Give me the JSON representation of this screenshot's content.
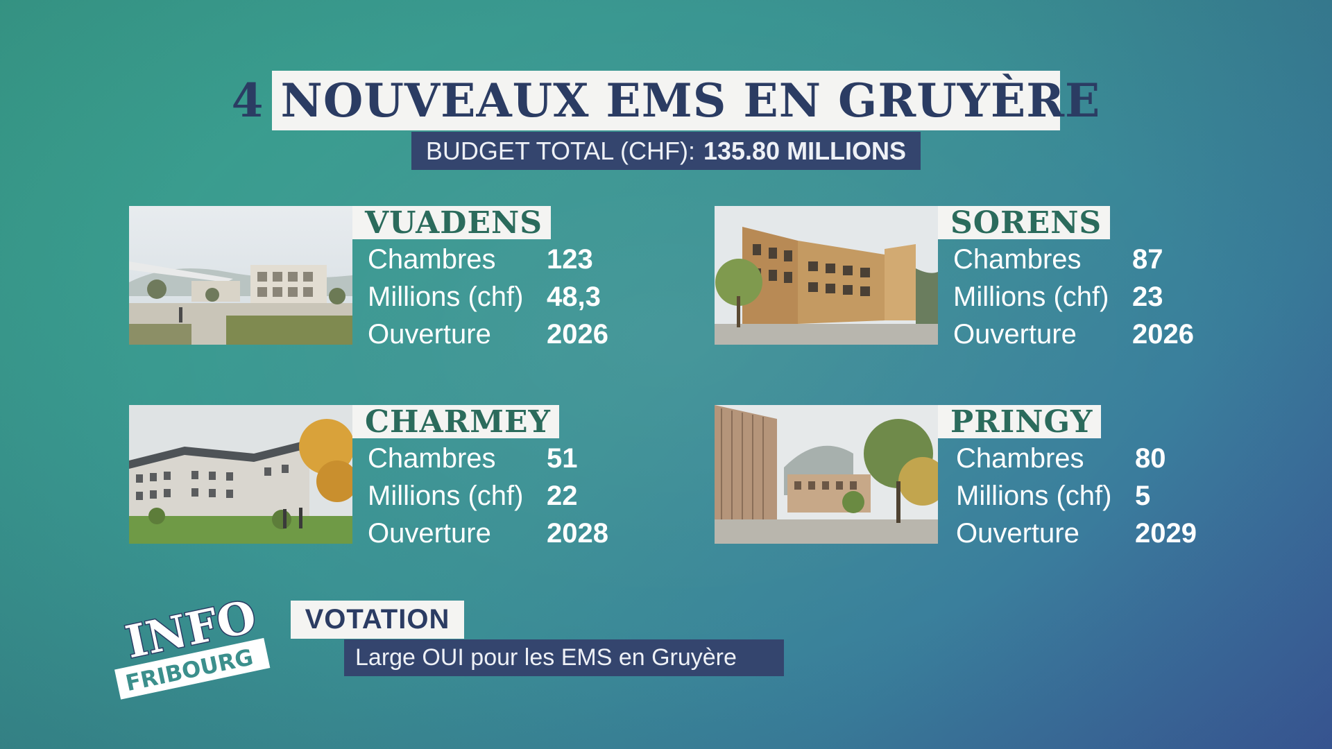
{
  "title": "4 NOUVEAUX EMS EN GRUYÈRE",
  "budget": {
    "label": "BUDGET TOTAL (CHF):",
    "value": "135.80 MILLIONS"
  },
  "projects": [
    {
      "name": "VUADENS",
      "rows": [
        {
          "label": "Chambres",
          "value": "123"
        },
        {
          "label": "Millions (chf)",
          "value": "48,3"
        },
        {
          "label": "Ouverture",
          "value": "2026"
        }
      ]
    },
    {
      "name": "SORENS",
      "rows": [
        {
          "label": "Chambres",
          "value": "87"
        },
        {
          "label": "Millions (chf)",
          "value": "23"
        },
        {
          "label": "Ouverture",
          "value": "2026"
        }
      ]
    },
    {
      "name": "CHARMEY",
      "rows": [
        {
          "label": "Chambres",
          "value": "51"
        },
        {
          "label": "Millions (chf)",
          "value": "22"
        },
        {
          "label": "Ouverture",
          "value": "2028"
        }
      ]
    },
    {
      "name": "PRINGY",
      "rows": [
        {
          "label": "Chambres",
          "value": "80"
        },
        {
          "label": "Millions (chf)",
          "value": "5"
        },
        {
          "label": "Ouverture",
          "value": "2029"
        }
      ]
    }
  ],
  "lower_third": {
    "tag": "VOTATION",
    "subtitle": "Large OUI pour les EMS en Gruyère"
  },
  "logo": {
    "line1": "INFO",
    "line2": "FRIBOURG"
  },
  "colors": {
    "title_navy": "#2b3c63",
    "name_green": "#2b6b5c",
    "label_box": "#f4f4f2",
    "navy_box": "#34456e"
  }
}
